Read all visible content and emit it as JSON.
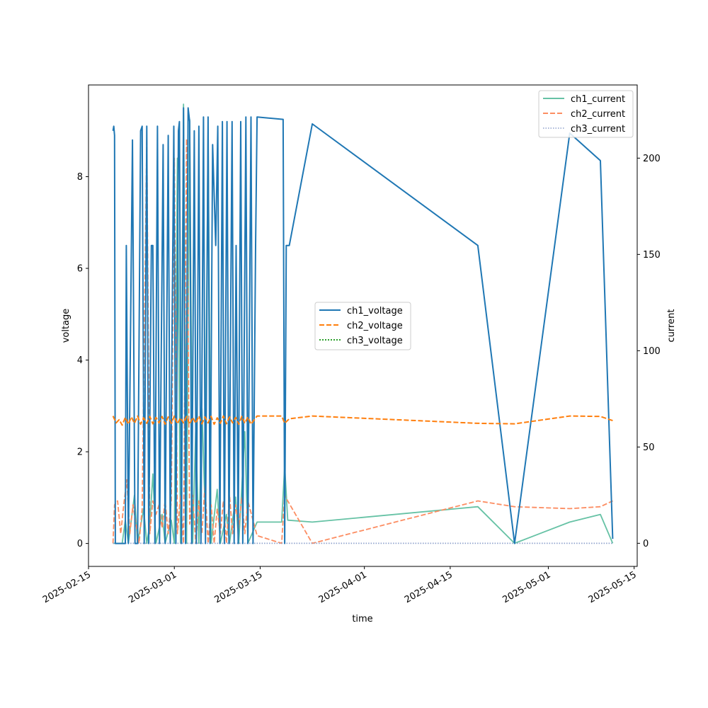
{
  "chart_data": {
    "type": "line",
    "xlabel": "time",
    "ylabel_left": "voltage",
    "ylabel_right": "current",
    "x_axis": {
      "min": "2025-02-15T00:00",
      "max": "2025-05-15T12:00",
      "ticks": [
        "2025-02-15",
        "2025-03-01",
        "2025-03-15",
        "2025-04-01",
        "2025-04-15",
        "2025-05-01",
        "2025-05-15"
      ]
    },
    "y_left": {
      "min": -0.5,
      "max": 10.0,
      "ticks": [
        0,
        2,
        4,
        6,
        8
      ]
    },
    "y_right": {
      "min": -12,
      "max": 238,
      "ticks": [
        0,
        50,
        100,
        150,
        200
      ]
    },
    "grid": false,
    "legend_left": {
      "placement": "center",
      "entries": [
        "ch1_voltage",
        "ch2_voltage",
        "ch3_voltage"
      ]
    },
    "legend_right": {
      "placement": "upper right",
      "entries": [
        "ch1_current",
        "ch2_current",
        "ch3_current"
      ]
    },
    "series": [
      {
        "name": "ch1_voltage",
        "axis": "left",
        "color": "#1f77b4",
        "dash": "solid",
        "points": [
          [
            "2025-02-19T00:00",
            9.0
          ],
          [
            "2025-02-19T03:00",
            9.1
          ],
          [
            "2025-02-19T06:00",
            8.9
          ],
          [
            "2025-02-19T09:00",
            0.0
          ],
          [
            "2025-02-21T00:00",
            0.0
          ],
          [
            "2025-02-21T04:00",
            6.5
          ],
          [
            "2025-02-21T12:00",
            0.0
          ],
          [
            "2025-02-22T04:00",
            8.8
          ],
          [
            "2025-02-22T14:00",
            0.0
          ],
          [
            "2025-02-23T00:00",
            0.0
          ],
          [
            "2025-02-23T12:00",
            9.0
          ],
          [
            "2025-02-23T18:00",
            9.1
          ],
          [
            "2025-02-24T02:00",
            0.0
          ],
          [
            "2025-02-24T12:00",
            9.1
          ],
          [
            "2025-02-24T20:00",
            0.0
          ],
          [
            "2025-02-25T06:00",
            6.5
          ],
          [
            "2025-02-25T12:00",
            6.5
          ],
          [
            "2025-02-25T20:00",
            0.0
          ],
          [
            "2025-02-26T06:00",
            9.1
          ],
          [
            "2025-02-26T14:00",
            0.0
          ],
          [
            "2025-02-27T04:00",
            8.7
          ],
          [
            "2025-02-27T12:00",
            0.0
          ],
          [
            "2025-02-28T00:00",
            8.9
          ],
          [
            "2025-02-28T08:00",
            0.0
          ],
          [
            "2025-02-28T22:00",
            9.1
          ],
          [
            "2025-03-01T06:00",
            0.0
          ],
          [
            "2025-03-01T16:00",
            9.0
          ],
          [
            "2025-03-01T20:00",
            9.2
          ],
          [
            "2025-03-02T04:00",
            0.0
          ],
          [
            "2025-03-02T12:00",
            9.5
          ],
          [
            "2025-03-02T20:00",
            0.0
          ],
          [
            "2025-03-03T06:00",
            9.5
          ],
          [
            "2025-03-03T12:00",
            9.2
          ],
          [
            "2025-03-03T20:00",
            0.0
          ],
          [
            "2025-03-04T06:00",
            9.0
          ],
          [
            "2025-03-04T14:00",
            0.0
          ],
          [
            "2025-03-05T00:00",
            9.1
          ],
          [
            "2025-03-05T08:00",
            0.0
          ],
          [
            "2025-03-05T18:00",
            9.3
          ],
          [
            "2025-03-06T02:00",
            0.0
          ],
          [
            "2025-03-06T12:00",
            9.3
          ],
          [
            "2025-03-06T20:00",
            0.0
          ],
          [
            "2025-03-07T06:00",
            8.7
          ],
          [
            "2025-03-07T18:00",
            6.5
          ],
          [
            "2025-03-08T02:00",
            9.1
          ],
          [
            "2025-03-08T10:00",
            0.0
          ],
          [
            "2025-03-08T20:00",
            9.2
          ],
          [
            "2025-03-09T04:00",
            0.0
          ],
          [
            "2025-03-09T14:00",
            9.2
          ],
          [
            "2025-03-09T22:00",
            0.0
          ],
          [
            "2025-03-10T10:00",
            9.2
          ],
          [
            "2025-03-10T18:00",
            0.0
          ],
          [
            "2025-03-11T02:00",
            6.5
          ],
          [
            "2025-03-11T10:00",
            0.0
          ],
          [
            "2025-03-11T20:00",
            9.2
          ],
          [
            "2025-03-12T04:00",
            0.0
          ],
          [
            "2025-03-12T16:00",
            9.3
          ],
          [
            "2025-03-13T00:00",
            0.0
          ],
          [
            "2025-03-13T12:00",
            9.3
          ],
          [
            "2025-03-13T20:00",
            0.0
          ],
          [
            "2025-03-14T06:00",
            6.5
          ],
          [
            "2025-03-14T12:00",
            9.3
          ],
          [
            "2025-03-18T18:00",
            9.25
          ],
          [
            "2025-03-19T00:00",
            0.0
          ],
          [
            "2025-03-19T06:00",
            6.5
          ],
          [
            "2025-03-19T18:00",
            6.5
          ],
          [
            "2025-03-23T12:00",
            9.15
          ],
          [
            "2025-04-19T12:00",
            6.5
          ],
          [
            "2025-04-25T12:00",
            0.0
          ],
          [
            "2025-05-04T12:00",
            8.95
          ],
          [
            "2025-05-09T12:00",
            8.35
          ],
          [
            "2025-05-11T12:00",
            0.1
          ]
        ]
      },
      {
        "name": "ch2_voltage",
        "axis": "left",
        "color": "#ff7f0e",
        "dash": "dashed",
        "points": [
          [
            "2025-02-19T00:00",
            2.78
          ],
          [
            "2025-02-19T12:00",
            2.63
          ],
          [
            "2025-02-20T00:00",
            2.7
          ],
          [
            "2025-02-20T12:00",
            2.58
          ],
          [
            "2025-02-21T00:00",
            2.75
          ],
          [
            "2025-02-21T12:00",
            2.6
          ],
          [
            "2025-02-22T00:00",
            2.76
          ],
          [
            "2025-02-22T12:00",
            2.62
          ],
          [
            "2025-02-23T00:00",
            2.78
          ],
          [
            "2025-02-23T12:00",
            2.6
          ],
          [
            "2025-02-24T00:00",
            2.74
          ],
          [
            "2025-02-24T12:00",
            2.62
          ],
          [
            "2025-02-25T00:00",
            2.77
          ],
          [
            "2025-02-25T12:00",
            2.61
          ],
          [
            "2025-02-26T00:00",
            2.75
          ],
          [
            "2025-02-26T12:00",
            2.63
          ],
          [
            "2025-02-27T00:00",
            2.77
          ],
          [
            "2025-02-27T12:00",
            2.6
          ],
          [
            "2025-02-28T00:00",
            2.76
          ],
          [
            "2025-02-28T12:00",
            2.62
          ],
          [
            "2025-03-01T00:00",
            2.78
          ],
          [
            "2025-03-01T12:00",
            2.61
          ],
          [
            "2025-03-02T00:00",
            2.74
          ],
          [
            "2025-03-02T12:00",
            2.63
          ],
          [
            "2025-03-03T00:00",
            2.77
          ],
          [
            "2025-03-03T12:00",
            2.6
          ],
          [
            "2025-03-04T00:00",
            2.75
          ],
          [
            "2025-03-04T12:00",
            2.62
          ],
          [
            "2025-03-05T00:00",
            2.78
          ],
          [
            "2025-03-05T12:00",
            2.61
          ],
          [
            "2025-03-06T00:00",
            2.76
          ],
          [
            "2025-03-06T12:00",
            2.63
          ],
          [
            "2025-03-07T00:00",
            2.77
          ],
          [
            "2025-03-07T12:00",
            2.6
          ],
          [
            "2025-03-08T00:00",
            2.74
          ],
          [
            "2025-03-08T12:00",
            2.62
          ],
          [
            "2025-03-09T00:00",
            2.78
          ],
          [
            "2025-03-09T12:00",
            2.61
          ],
          [
            "2025-03-10T00:00",
            2.76
          ],
          [
            "2025-03-10T12:00",
            2.63
          ],
          [
            "2025-03-11T00:00",
            2.75
          ],
          [
            "2025-03-11T12:00",
            2.6
          ],
          [
            "2025-03-12T00:00",
            2.77
          ],
          [
            "2025-03-12T12:00",
            2.62
          ],
          [
            "2025-03-13T00:00",
            2.76
          ],
          [
            "2025-03-13T12:00",
            2.6
          ],
          [
            "2025-03-14T12:00",
            2.78
          ],
          [
            "2025-03-18T12:00",
            2.78
          ],
          [
            "2025-03-19T00:00",
            2.62
          ],
          [
            "2025-03-19T18:00",
            2.72
          ],
          [
            "2025-03-23T12:00",
            2.78
          ],
          [
            "2025-04-19T12:00",
            2.62
          ],
          [
            "2025-04-25T12:00",
            2.61
          ],
          [
            "2025-05-04T12:00",
            2.78
          ],
          [
            "2025-05-09T12:00",
            2.77
          ],
          [
            "2025-05-11T12:00",
            2.68
          ]
        ]
      },
      {
        "name": "ch3_voltage",
        "axis": "left",
        "color": "#2ca02c",
        "dash": "dotted",
        "points": []
      },
      {
        "name": "ch1_current",
        "axis": "right",
        "color": "#66c2a5",
        "dash": "solid",
        "points": [
          [
            "2025-02-19T00:00",
            0
          ],
          [
            "2025-02-20T12:00",
            0
          ],
          [
            "2025-02-21T00:00",
            12
          ],
          [
            "2025-02-21T12:00",
            0
          ],
          [
            "2025-02-22T12:00",
            25
          ],
          [
            "2025-02-23T00:00",
            0
          ],
          [
            "2025-02-24T00:00",
            18
          ],
          [
            "2025-02-24T12:00",
            0
          ],
          [
            "2025-02-25T00:00",
            10
          ],
          [
            "2025-02-25T12:00",
            36
          ],
          [
            "2025-02-26T00:00",
            0
          ],
          [
            "2025-02-27T00:00",
            15
          ],
          [
            "2025-02-27T12:00",
            0
          ],
          [
            "2025-02-28T12:00",
            12
          ],
          [
            "2025-03-01T00:00",
            0
          ],
          [
            "2025-03-01T12:00",
            200
          ],
          [
            "2025-03-02T00:00",
            0
          ],
          [
            "2025-03-02T12:00",
            228
          ],
          [
            "2025-03-03T00:00",
            0
          ],
          [
            "2025-03-03T12:00",
            220
          ],
          [
            "2025-03-04T00:00",
            0
          ],
          [
            "2025-03-04T12:00",
            60
          ],
          [
            "2025-03-05T00:00",
            0
          ],
          [
            "2025-03-05T12:00",
            70
          ],
          [
            "2025-03-06T00:00",
            20
          ],
          [
            "2025-03-06T12:00",
            215
          ],
          [
            "2025-03-07T00:00",
            0
          ],
          [
            "2025-03-08T00:00",
            28
          ],
          [
            "2025-03-08T12:00",
            0
          ],
          [
            "2025-03-09T12:00",
            15
          ],
          [
            "2025-03-10T00:00",
            0
          ],
          [
            "2025-03-11T00:00",
            24
          ],
          [
            "2025-03-11T12:00",
            0
          ],
          [
            "2025-03-12T12:00",
            58
          ],
          [
            "2025-03-13T00:00",
            0
          ],
          [
            "2025-03-14T12:00",
            11
          ],
          [
            "2025-03-18T12:00",
            11
          ],
          [
            "2025-03-19T00:00",
            40
          ],
          [
            "2025-03-19T12:00",
            12
          ],
          [
            "2025-03-23T12:00",
            11
          ],
          [
            "2025-04-19T12:00",
            19
          ],
          [
            "2025-04-25T12:00",
            0
          ],
          [
            "2025-05-04T12:00",
            11
          ],
          [
            "2025-05-09T12:00",
            15
          ],
          [
            "2025-05-11T12:00",
            0
          ]
        ]
      },
      {
        "name": "ch2_current",
        "axis": "right",
        "color": "#fc8d62",
        "dash": "dashed",
        "points": [
          [
            "2025-02-19T00:00",
            0
          ],
          [
            "2025-02-19T06:00",
            20
          ],
          [
            "2025-02-19T18:00",
            22
          ],
          [
            "2025-02-20T06:00",
            5
          ],
          [
            "2025-02-20T18:00",
            20
          ],
          [
            "2025-02-21T06:00",
            33
          ],
          [
            "2025-02-21T18:00",
            5
          ],
          [
            "2025-02-22T06:00",
            20
          ],
          [
            "2025-02-22T18:00",
            10
          ],
          [
            "2025-02-23T06:00",
            0
          ],
          [
            "2025-02-23T18:00",
            18
          ],
          [
            "2025-02-24T12:00",
            210
          ],
          [
            "2025-02-25T00:00",
            5
          ],
          [
            "2025-02-25T12:00",
            22
          ],
          [
            "2025-02-26T00:00",
            15
          ],
          [
            "2025-02-26T12:00",
            20
          ],
          [
            "2025-02-27T00:00",
            8
          ],
          [
            "2025-02-27T12:00",
            22
          ],
          [
            "2025-02-28T00:00",
            5
          ],
          [
            "2025-02-28T12:00",
            22
          ],
          [
            "2025-03-01T00:00",
            200
          ],
          [
            "2025-03-01T12:00",
            5
          ],
          [
            "2025-03-02T00:00",
            25
          ],
          [
            "2025-03-02T12:00",
            0
          ],
          [
            "2025-03-03T00:00",
            210
          ],
          [
            "2025-03-03T12:00",
            10
          ],
          [
            "2025-03-04T00:00",
            25
          ],
          [
            "2025-03-04T12:00",
            0
          ],
          [
            "2025-03-05T00:00",
            22
          ],
          [
            "2025-03-05T12:00",
            5
          ],
          [
            "2025-03-06T00:00",
            30
          ],
          [
            "2025-03-06T12:00",
            0
          ],
          [
            "2025-03-07T00:00",
            20
          ],
          [
            "2025-03-07T12:00",
            0
          ],
          [
            "2025-03-08T00:00",
            18
          ],
          [
            "2025-03-08T12:00",
            5
          ],
          [
            "2025-03-09T00:00",
            22
          ],
          [
            "2025-03-09T12:00",
            0
          ],
          [
            "2025-03-10T00:00",
            25
          ],
          [
            "2025-03-10T12:00",
            5
          ],
          [
            "2025-03-11T00:00",
            20
          ],
          [
            "2025-03-11T12:00",
            8
          ],
          [
            "2025-03-12T00:00",
            24
          ],
          [
            "2025-03-12T12:00",
            5
          ],
          [
            "2025-03-13T00:00",
            22
          ],
          [
            "2025-03-14T12:00",
            4
          ],
          [
            "2025-03-18T12:00",
            0
          ],
          [
            "2025-03-19T00:00",
            25
          ],
          [
            "2025-03-19T12:00",
            22
          ],
          [
            "2025-03-23T12:00",
            0
          ],
          [
            "2025-04-19T12:00",
            22
          ],
          [
            "2025-04-25T12:00",
            19
          ],
          [
            "2025-05-04T12:00",
            18
          ],
          [
            "2025-05-09T12:00",
            19
          ],
          [
            "2025-05-11T12:00",
            22
          ]
        ]
      },
      {
        "name": "ch3_current",
        "axis": "right",
        "color": "#8da0cb",
        "dash": "dotted",
        "points": [
          [
            "2025-02-19T00:00",
            0
          ],
          [
            "2025-05-11T12:00",
            0
          ]
        ]
      }
    ]
  }
}
